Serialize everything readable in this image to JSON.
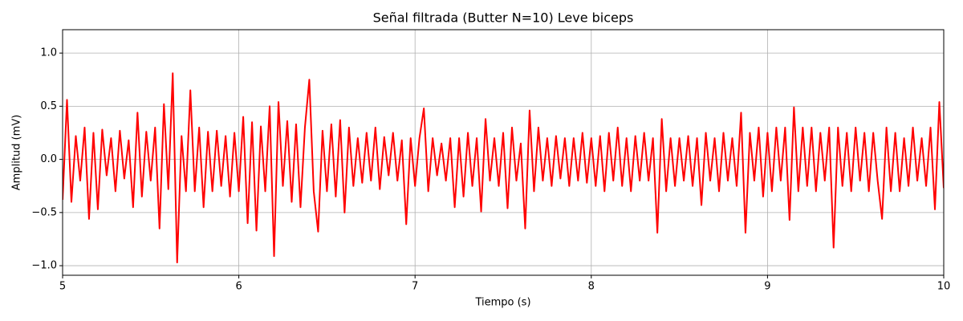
{
  "chart_data": {
    "type": "line",
    "title": "Señal filtrada (Butter N=10) Leve biceps",
    "x_label": "Tiempo (s)",
    "y_label": "Amplitud (mV)",
    "color": "#ff0000",
    "grid": true,
    "xlim": [
      5,
      10
    ],
    "ylim": [
      -1.09,
      1.22
    ],
    "xticks": [
      5,
      6,
      7,
      8,
      9,
      10
    ],
    "yticks": [
      {
        "value": -1,
        "label": "−1.0"
      },
      {
        "value": -0.5,
        "label": "−0.5"
      },
      {
        "value": 0,
        "label": "0.0"
      },
      {
        "value": 0.5,
        "label": "0.5"
      },
      {
        "value": 1,
        "label": "1.0"
      }
    ],
    "x": [
      5,
      5.025,
      5.05,
      5.075,
      5.1,
      5.125,
      5.15,
      5.175,
      5.2,
      5.225,
      5.25,
      5.275,
      5.3,
      5.325,
      5.35,
      5.375,
      5.4,
      5.425,
      5.45,
      5.475,
      5.5,
      5.525,
      5.55,
      5.575,
      5.6,
      5.625,
      5.65,
      5.675,
      5.7,
      5.725,
      5.75,
      5.775,
      5.8,
      5.825,
      5.85,
      5.875,
      5.9,
      5.925,
      5.95,
      5.975,
      6,
      6.025,
      6.05,
      6.075,
      6.1,
      6.125,
      6.15,
      6.175,
      6.2,
      6.225,
      6.25,
      6.275,
      6.3,
      6.325,
      6.35,
      6.375,
      6.4,
      6.425,
      6.45,
      6.475,
      6.5,
      6.525,
      6.55,
      6.575,
      6.6,
      6.625,
      6.65,
      6.675,
      6.7,
      6.725,
      6.75,
      6.775,
      6.8,
      6.825,
      6.85,
      6.875,
      6.9,
      6.925,
      6.95,
      6.975,
      7,
      7.025,
      7.05,
      7.075,
      7.1,
      7.125,
      7.15,
      7.175,
      7.2,
      7.225,
      7.25,
      7.275,
      7.3,
      7.325,
      7.35,
      7.375,
      7.4,
      7.425,
      7.45,
      7.475,
      7.5,
      7.525,
      7.55,
      7.575,
      7.6,
      7.625,
      7.65,
      7.675,
      7.7,
      7.725,
      7.75,
      7.775,
      7.8,
      7.825,
      7.85,
      7.875,
      7.9,
      7.925,
      7.95,
      7.975,
      8,
      8.025,
      8.05,
      8.075,
      8.1,
      8.125,
      8.15,
      8.175,
      8.2,
      8.225,
      8.25,
      8.275,
      8.3,
      8.325,
      8.35,
      8.375,
      8.4,
      8.425,
      8.45,
      8.475,
      8.5,
      8.525,
      8.55,
      8.575,
      8.6,
      8.625,
      8.65,
      8.675,
      8.7,
      8.725,
      8.75,
      8.775,
      8.8,
      8.825,
      8.85,
      8.875,
      8.9,
      8.925,
      8.95,
      8.975,
      9,
      9.025,
      9.05,
      9.075,
      9.1,
      9.125,
      9.15,
      9.175,
      9.2,
      9.225,
      9.25,
      9.275,
      9.3,
      9.325,
      9.35,
      9.375,
      9.4,
      9.425,
      9.45,
      9.475,
      9.5,
      9.525,
      9.55,
      9.575,
      9.6,
      9.625,
      9.65,
      9.675,
      9.7,
      9.725,
      9.75,
      9.775,
      9.8,
      9.825,
      9.85,
      9.875,
      9.9,
      9.925,
      9.95,
      9.975,
      10
    ],
    "values": [
      -0.38,
      0.56,
      -0.4,
      0.22,
      -0.2,
      0.3,
      -0.56,
      0.25,
      -0.47,
      0.28,
      -0.15,
      0.2,
      -0.3,
      0.27,
      -0.18,
      0.18,
      -0.45,
      0.44,
      -0.35,
      0.26,
      -0.2,
      0.3,
      -0.65,
      0.52,
      -0.28,
      0.81,
      -0.97,
      0.22,
      -0.3,
      0.65,
      -0.3,
      0.3,
      -0.45,
      0.26,
      -0.3,
      0.27,
      -0.25,
      0.22,
      -0.35,
      0.25,
      -0.3,
      0.4,
      -0.6,
      0.35,
      -0.67,
      0.31,
      -0.3,
      0.5,
      -0.91,
      0.54,
      -0.25,
      0.36,
      -0.4,
      0.33,
      -0.45,
      0.3,
      0.75,
      -0.3,
      -0.68,
      0.27,
      -0.3,
      0.33,
      -0.35,
      0.37,
      -0.5,
      0.3,
      -0.25,
      0.2,
      -0.22,
      0.25,
      -0.2,
      0.3,
      -0.28,
      0.21,
      -0.15,
      0.25,
      -0.2,
      0.18,
      -0.61,
      0.2,
      -0.25,
      0.2,
      0.48,
      -0.3,
      0.2,
      -0.15,
      0.15,
      -0.2,
      0.2,
      -0.45,
      0.2,
      -0.35,
      0.25,
      -0.25,
      0.2,
      -0.49,
      0.38,
      -0.2,
      0.2,
      -0.25,
      0.25,
      -0.46,
      0.3,
      -0.2,
      0.15,
      -0.65,
      0.46,
      -0.3,
      0.3,
      -0.2,
      0.2,
      -0.25,
      0.22,
      -0.18,
      0.2,
      -0.25,
      0.2,
      -0.2,
      0.25,
      -0.22,
      0.2,
      -0.25,
      0.22,
      -0.3,
      0.25,
      -0.2,
      0.3,
      -0.25,
      0.2,
      -0.3,
      0.22,
      -0.2,
      0.25,
      -0.2,
      0.2,
      -0.69,
      0.38,
      -0.3,
      0.2,
      -0.25,
      0.2,
      -0.2,
      0.22,
      -0.25,
      0.2,
      -0.43,
      0.25,
      -0.2,
      0.2,
      -0.3,
      0.25,
      -0.2,
      0.2,
      -0.25,
      0.44,
      -0.69,
      0.25,
      -0.2,
      0.3,
      -0.35,
      0.25,
      -0.3,
      0.3,
      -0.2,
      0.3,
      -0.57,
      0.49,
      -0.3,
      0.3,
      -0.25,
      0.3,
      -0.3,
      0.25,
      -0.2,
      0.3,
      -0.83,
      0.3,
      -0.25,
      0.25,
      -0.3,
      0.3,
      -0.2,
      0.25,
      -0.3,
      0.25,
      -0.2,
      -0.56,
      0.3,
      -0.3,
      0.25,
      -0.3,
      0.2,
      -0.25,
      0.3,
      -0.2,
      0.2,
      -0.25,
      0.3,
      -0.47,
      0.54,
      -0.27
    ]
  }
}
